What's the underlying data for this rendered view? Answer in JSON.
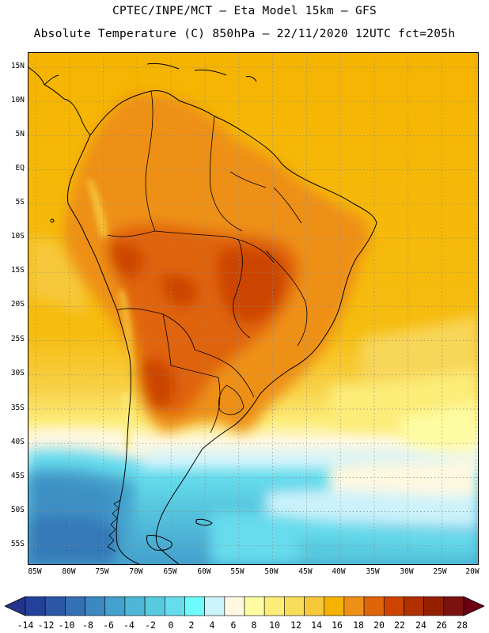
{
  "header": {
    "line1": "CPTEC/INPE/MCT —  Eta Model 15km — GFS",
    "line2": "Absolute Temperature (C) 850hPa — 22/11/2020 12UTC fct=205h"
  },
  "axes": {
    "lat_labels": [
      "15N",
      "10N",
      "5N",
      "EQ",
      "5S",
      "10S",
      "15S",
      "20S",
      "25S",
      "30S",
      "35S",
      "40S",
      "45S",
      "50S",
      "55S"
    ],
    "lon_labels": [
      "85W",
      "80W",
      "75W",
      "70W",
      "65W",
      "60W",
      "55W",
      "50W",
      "45W",
      "40W",
      "35W",
      "30W",
      "25W",
      "20W"
    ]
  },
  "colorbar": {
    "labels": [
      "-14",
      "-12",
      "-10",
      "-8",
      "-6",
      "-4",
      "-2",
      "0",
      "2",
      "4",
      "6",
      "8",
      "10",
      "12",
      "14",
      "16",
      "18",
      "20",
      "22",
      "24",
      "26",
      "28"
    ],
    "under_color": "#24348c",
    "over_color": "#6e0014",
    "colors": [
      "#24409a",
      "#2b57a6",
      "#3471b4",
      "#3c88c0",
      "#44a0cc",
      "#4eb6d6",
      "#58cae0",
      "#66dced",
      "#6ffbfd",
      "#ccf2fb",
      "#fff8e0",
      "#fefca2",
      "#fcec78",
      "#f8dc5a",
      "#f6c83a",
      "#f5b200",
      "#ee9018",
      "#e06408",
      "#cc4400",
      "#b03000",
      "#952000",
      "#7a1210"
    ]
  }
}
